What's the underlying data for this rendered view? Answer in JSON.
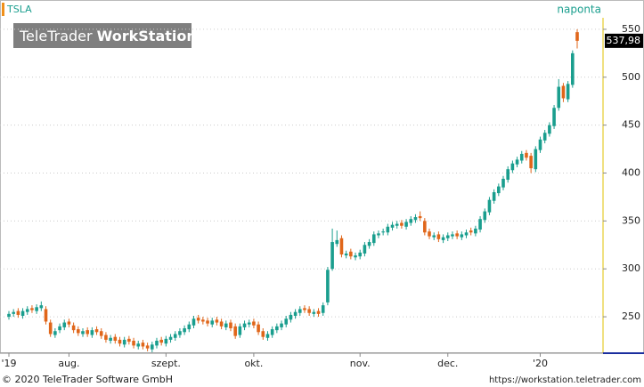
{
  "chart_data": {
    "type": "candlestick",
    "symbol": "TSLA",
    "interval": "naponta",
    "watermark": [
      "TeleTrader",
      "WorkStation"
    ],
    "footer_left": "© 2020 TeleTrader Software GmbH",
    "footer_right": "https://workstation.teletrader.com",
    "up_color": "#1a9e8e",
    "down_color": "#e0661a",
    "last_value": 537.98,
    "last_value_label": "537,98",
    "ylim": [
      212,
      562
    ],
    "yticks": [
      250,
      300,
      350,
      400,
      450,
      500,
      550
    ],
    "grid": true,
    "xlim": [
      -2,
      125
    ],
    "xticks": [
      {
        "value": 0,
        "label": "'19"
      },
      {
        "value": 13,
        "label": "aug."
      },
      {
        "value": 34,
        "label": "szept."
      },
      {
        "value": 53,
        "label": "okt."
      },
      {
        "value": 76,
        "label": "nov."
      },
      {
        "value": 95,
        "label": "dec."
      },
      {
        "value": 115,
        "label": "'20"
      }
    ],
    "open": [
      250,
      253,
      256,
      251,
      255,
      259,
      256,
      259,
      258,
      244,
      231,
      236,
      239,
      245,
      241,
      237,
      232,
      236,
      231,
      237,
      235,
      231,
      225,
      229,
      226,
      221,
      227,
      225,
      219,
      223,
      220,
      216,
      220,
      226,
      222,
      226,
      228,
      231,
      234,
      237,
      241,
      249,
      247,
      246,
      242,
      247,
      245,
      239,
      244,
      240,
      231,
      239,
      242,
      245,
      242,
      235,
      228,
      231,
      236,
      239,
      242,
      247,
      251,
      254,
      259,
      258,
      253,
      256,
      254,
      265,
      300,
      326,
      332,
      314,
      318,
      312,
      313,
      316,
      324,
      327,
      335,
      338,
      338,
      343,
      345,
      348,
      344,
      348,
      351,
      355,
      350,
      339,
      333,
      336,
      330,
      332,
      334,
      337,
      333,
      335,
      340,
      337,
      341,
      351,
      359,
      371,
      379,
      385,
      393,
      403,
      409,
      413,
      421,
      418,
      404,
      424,
      434,
      441,
      449,
      468,
      491,
      477,
      492,
      547
    ],
    "high": [
      256,
      258,
      259,
      259,
      261,
      262,
      263,
      266,
      261,
      247,
      238,
      243,
      247,
      248,
      244,
      240,
      238,
      239,
      239,
      240,
      238,
      234,
      231,
      232,
      229,
      229,
      230,
      228,
      225,
      226,
      223,
      224,
      228,
      229,
      230,
      232,
      235,
      238,
      241,
      245,
      251,
      252,
      250,
      249,
      249,
      250,
      248,
      246,
      247,
      243,
      243,
      246,
      247,
      248,
      245,
      238,
      235,
      240,
      243,
      246,
      251,
      255,
      258,
      261,
      262,
      261,
      258,
      259,
      265,
      302,
      342,
      340,
      335,
      319,
      321,
      317,
      320,
      328,
      331,
      339,
      340,
      342,
      347,
      349,
      350,
      351,
      352,
      355,
      357,
      360,
      353,
      342,
      338,
      339,
      336,
      338,
      339,
      340,
      339,
      341,
      343,
      345,
      355,
      363,
      375,
      383,
      389,
      397,
      407,
      413,
      417,
      423,
      424,
      421,
      428,
      438,
      445,
      453,
      471,
      498,
      494,
      496,
      528,
      550
    ],
    "low": [
      247,
      250,
      249,
      248,
      252,
      254,
      253,
      256,
      242,
      229,
      228,
      233,
      236,
      239,
      233,
      230,
      229,
      229,
      228,
      231,
      227,
      223,
      222,
      222,
      219,
      218,
      221,
      217,
      216,
      216,
      214,
      213,
      217,
      220,
      219,
      223,
      225,
      228,
      231,
      234,
      238,
      243,
      242,
      240,
      239,
      241,
      237,
      236,
      235,
      227,
      228,
      236,
      239,
      238,
      231,
      226,
      225,
      228,
      233,
      236,
      239,
      244,
      248,
      251,
      254,
      251,
      250,
      250,
      251,
      262,
      298,
      323,
      312,
      311,
      310,
      309,
      310,
      313,
      321,
      324,
      332,
      335,
      335,
      340,
      342,
      342,
      341,
      345,
      348,
      350,
      335,
      331,
      330,
      328,
      327,
      329,
      331,
      331,
      330,
      332,
      335,
      334,
      338,
      348,
      356,
      368,
      376,
      382,
      390,
      400,
      406,
      410,
      413,
      400,
      401,
      421,
      431,
      438,
      446,
      465,
      474,
      474,
      489,
      530
    ],
    "close": [
      253,
      255,
      252,
      256,
      258,
      257,
      260,
      262,
      245,
      232,
      235,
      240,
      244,
      242,
      236,
      233,
      235,
      232,
      236,
      234,
      230,
      226,
      228,
      225,
      222,
      226,
      224,
      220,
      222,
      219,
      217,
      221,
      225,
      223,
      227,
      229,
      232,
      235,
      238,
      242,
      248,
      246,
      245,
      243,
      246,
      244,
      240,
      243,
      238,
      230,
      240,
      243,
      244,
      241,
      234,
      229,
      232,
      237,
      240,
      243,
      248,
      252,
      255,
      258,
      257,
      254,
      255,
      253,
      262,
      299,
      328,
      330,
      315,
      316,
      313,
      314,
      317,
      325,
      328,
      336,
      337,
      339,
      344,
      346,
      347,
      345,
      349,
      352,
      354,
      353,
      338,
      334,
      335,
      331,
      333,
      335,
      336,
      334,
      336,
      338,
      338,
      342,
      352,
      360,
      372,
      380,
      386,
      394,
      404,
      410,
      414,
      420,
      416,
      405,
      425,
      435,
      442,
      450,
      468,
      490,
      478,
      493,
      525,
      537.98
    ]
  }
}
